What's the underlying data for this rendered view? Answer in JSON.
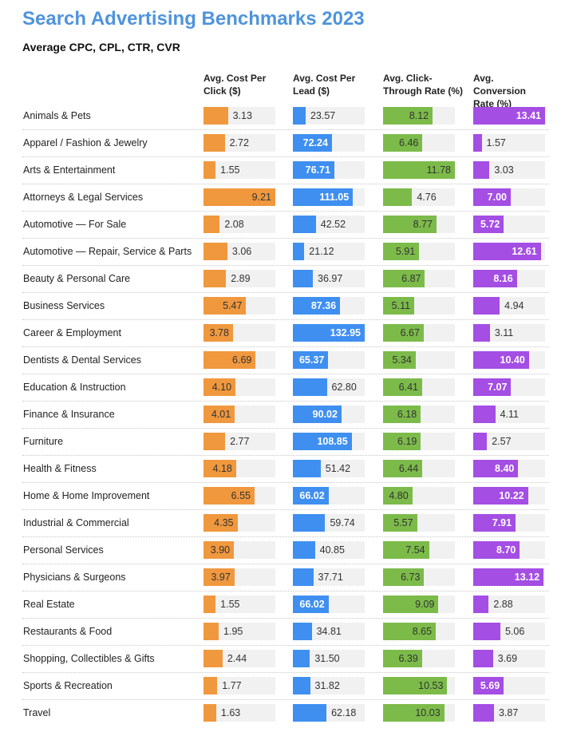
{
  "title": "Search Advertising Benchmarks 2023",
  "subtitle": "Average CPC, CPL, CTR, CVR",
  "chart_data": {
    "type": "table",
    "columns": [
      {
        "label": "Avg. Cost Per Click ($)",
        "color": "#f0983e"
      },
      {
        "label": "Avg. Cost Per Lead ($)",
        "color": "#3f8ff0"
      },
      {
        "label": "Avg. Click-Through Rate (%)",
        "color": "#7cbb4a"
      },
      {
        "label": "Avg. Conversion Rate (%)",
        "color": "#a44ee4"
      }
    ],
    "categories": [
      "Animals & Pets",
      "Apparel / Fashion & Jewelry",
      "Arts & Entertainment",
      "Attorneys & Legal Services",
      "Automotive — For Sale",
      "Automotive — Repair, Service & Parts",
      "Beauty & Personal Care",
      "Business Services",
      "Career & Employment",
      "Dentists & Dental Services",
      "Education & Instruction",
      "Finance & Insurance",
      "Furniture",
      "Health & Fitness",
      "Home & Home Improvement",
      "Industrial & Commercial",
      "Personal Services",
      "Physicians & Surgeons",
      "Real Estate",
      "Restaurants & Food",
      "Shopping, Collectibles & Gifts",
      "Sports & Recreation",
      "Travel"
    ],
    "series": [
      {
        "name": "Avg. Cost Per Click ($)",
        "values": [
          "3.13",
          "2.72",
          "1.55",
          "9.21",
          "2.08",
          "3.06",
          "2.89",
          "5.47",
          "3.78",
          "6.69",
          "4.10",
          "4.01",
          "2.77",
          "4.18",
          "6.55",
          "4.35",
          "3.90",
          "3.97",
          "1.55",
          "1.95",
          "2.44",
          "1.77",
          "1.63"
        ]
      },
      {
        "name": "Avg. Cost Per Lead ($)",
        "values": [
          "23.57",
          "72.24",
          "76.71",
          "111.05",
          "42.52",
          "21.12",
          "36.97",
          "87.36",
          "132.95",
          "65.37",
          "62.80",
          "90.02",
          "108.85",
          "51.42",
          "66.02",
          "59.74",
          "40.85",
          "37.71",
          "66.02",
          "34.81",
          "31.50",
          "31.82",
          "62.18"
        ]
      },
      {
        "name": "Avg. Click-Through Rate (%)",
        "values": [
          "8.12",
          "6.46",
          "11.78",
          "4.76",
          "8.77",
          "5.91",
          "6.87",
          "5.11",
          "6.67",
          "5.34",
          "6.41",
          "6.18",
          "6.19",
          "6.44",
          "4.80",
          "5.57",
          "7.54",
          "6.73",
          "9.09",
          "8.65",
          "6.39",
          "10.53",
          "10.03"
        ]
      },
      {
        "name": "Avg. Conversion Rate (%)",
        "values": [
          "13.41",
          "1.57",
          "3.03",
          "7.00",
          "5.72",
          "12.61",
          "8.16",
          "4.94",
          "3.11",
          "10.40",
          "7.07",
          "4.11",
          "2.57",
          "8.40",
          "10.22",
          "7.91",
          "8.70",
          "13.12",
          "2.88",
          "5.06",
          "3.69",
          "5.69",
          "3.87"
        ]
      }
    ]
  }
}
